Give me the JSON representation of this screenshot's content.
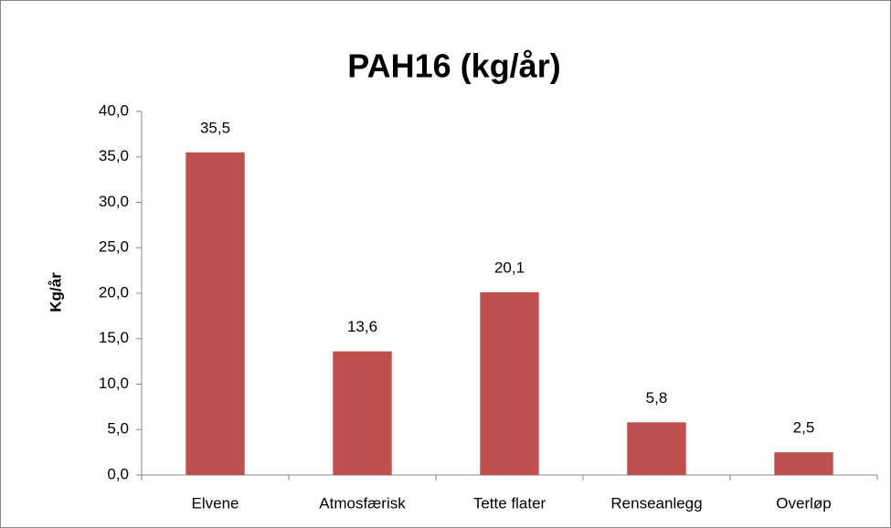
{
  "chart_data": {
    "type": "bar",
    "title": "PAH16 (kg/år)",
    "y_label": "Kg/år",
    "categories": [
      "Elvene",
      "Atmosfærisk",
      "Tette flater",
      "Renseanlegg",
      "Overløp"
    ],
    "values": [
      35.5,
      13.6,
      20.1,
      5.8,
      2.5
    ],
    "value_labels": [
      "35,5",
      "13,6",
      "20,1",
      "5,8",
      "2,5"
    ],
    "color": "#c0504d",
    "ylim": [
      0,
      40
    ],
    "yticks": [
      {
        "value": 0,
        "label": "0,0"
      },
      {
        "value": 5,
        "label": "5,0"
      },
      {
        "value": 10,
        "label": "10,0"
      },
      {
        "value": 15,
        "label": "15,0"
      },
      {
        "value": 20,
        "label": "20,0"
      },
      {
        "value": 25,
        "label": "25,0"
      },
      {
        "value": 30,
        "label": "30,0"
      },
      {
        "value": 35,
        "label": "35,0"
      },
      {
        "value": 40,
        "label": "40,0"
      }
    ],
    "grid": false
  }
}
